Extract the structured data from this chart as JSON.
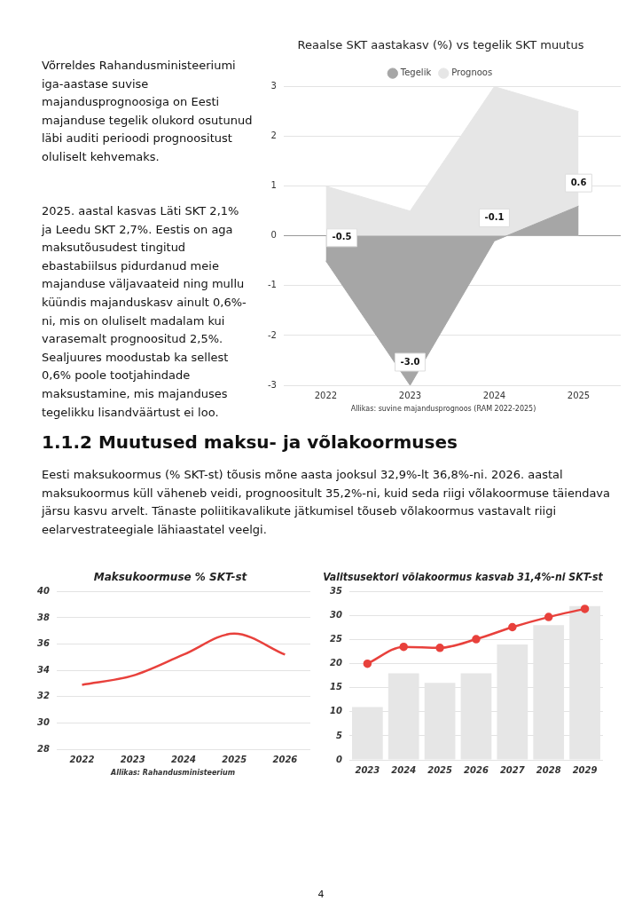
{
  "chart_data": [
    {
      "type": "area",
      "title": "Reaalse SKT aastakasv (%) vs tegelik SKT muutus",
      "categories": [
        "2022",
        "2023",
        "2024",
        "2025"
      ],
      "series": [
        {
          "name": "Prognoos",
          "color": "#e6e6e6",
          "values": [
            1,
            0.5,
            3,
            2.5
          ]
        },
        {
          "name": "Tegelik",
          "color": "#a6a6a6",
          "values": [
            -0.5,
            -3.0,
            -0.1,
            0.6
          ],
          "value_labels": [
            "-0.5",
            "-3.0",
            "-0.1",
            "0.6"
          ]
        }
      ],
      "ylim": [
        -3,
        3
      ],
      "yticks": [
        -3,
        -2,
        -1,
        0,
        1,
        2,
        3
      ],
      "grid": "y",
      "legend": "top",
      "annotations": [
        "Allikas: suvine majandusprognoos (RAM 2022-2025)",
        "Võrreldes Rahandusministeeriumi iga-aastase suvise majandusprognoosiga on Eesti majanduse tegelik olukord osutunud läbi auditi perioodi prognoositust oluliselt kehvemaks.",
        "2025. aastal kasvas Läti SKT 2,1% ja Leedu SKT 2,7%. Eestis on aga maksutõusudest tingitud ebastabiilsus pidurdanud meie majanduse väljavaateid ning mullu küündis majanduskasv ainult 0,6%-ni, mis on oluliselt madalam kui varasemalt prognoositud 2,5%. Sealjuures moodustab ka sellest 0,6% poole tootjahindade maksustamine, mis majanduses tegelikku lisandväärtust ei loo.",
        "1.1.2 Muutused maksu- ja võlakoormuses",
        "Eesti maksukoormus (% SKT-st) tõusis mõne aasta jooksul 32,9%-lt 36,8%-ni. 2026. aastal maksukoormus küll väheneb veidi, prognoositult 35,2%-ni, kuid seda riigi võlakoormuse täiendava järsu kasvu arvelt. Tänaste poliitikavalikute jätkumisel tõuseb võlakoormus vastavalt riigi eelarvestrateegiale lähiaastatel veelgi.",
        "4"
      ]
    },
    {
      "type": "line",
      "title": "Maksukoormuse % SKT-st",
      "categories": [
        "2022",
        "2023",
        "2024",
        "2025",
        "2026"
      ],
      "series": [
        {
          "color": "#e8413c",
          "values": [
            32.9,
            33.6,
            35.2,
            36.8,
            35.2
          ]
        }
      ],
      "ylim": [
        28,
        40
      ],
      "yticks": [
        28,
        30,
        32,
        34,
        36,
        38,
        40
      ],
      "grid": "y",
      "annotations": [
        "Allikas: Rahandusministeerium"
      ]
    },
    {
      "type": "bar",
      "title": "Valitsusektori võlakoormus kasvab 31,4%-ni SKT-st",
      "categories": [
        "2023",
        "2024",
        "2025",
        "2026",
        "2027",
        "2028",
        "2029"
      ],
      "series": [
        {
          "color": "#e6e6e6",
          "values": [
            11,
            18,
            16,
            18,
            24,
            28,
            32
          ]
        },
        {
          "type": "line",
          "marker": "circle",
          "color": "#e8413c",
          "values": [
            20,
            23.5,
            23.3,
            25.1,
            27.6,
            29.7,
            31.4
          ]
        }
      ],
      "ylim": [
        0,
        35
      ],
      "yticks": [
        0,
        5,
        10,
        15,
        20,
        25,
        30,
        35
      ],
      "grid": "y"
    }
  ]
}
